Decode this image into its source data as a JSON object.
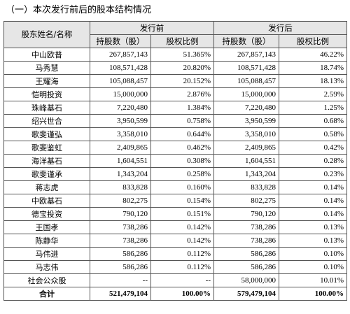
{
  "header": {
    "title": "（一）本次发行前后的股本结构情况"
  },
  "table": {
    "columns": {
      "name": "股东姓名/名称",
      "before": "发行前",
      "after": "发行后",
      "shares": "持股数（股）",
      "ratio": "股权比例"
    },
    "rows": [
      [
        "中山欧普",
        "267,857,143",
        "51.365%",
        "267,857,143",
        "46.22%"
      ],
      [
        "马秀慧",
        "108,571,428",
        "20.820%",
        "108,571,428",
        "18.74%"
      ],
      [
        "王耀海",
        "105,088,457",
        "20.152%",
        "105,088,457",
        "18.13%"
      ],
      [
        "恺明投资",
        "15,000,000",
        "2.876%",
        "15,000,000",
        "2.59%"
      ],
      [
        "珠峰基石",
        "7,220,480",
        "1.384%",
        "7,220,480",
        "1.25%"
      ],
      [
        "绍兴世合",
        "3,950,599",
        "0.758%",
        "3,950,599",
        "0.68%"
      ],
      [
        "歌斐谨弘",
        "3,358,010",
        "0.644%",
        "3,358,010",
        "0.58%"
      ],
      [
        "歌斐鉴虹",
        "2,409,865",
        "0.462%",
        "2,409,865",
        "0.42%"
      ],
      [
        "海洋基石",
        "1,604,551",
        "0.308%",
        "1,604,551",
        "0.28%"
      ],
      [
        "歌斐谨承",
        "1,343,204",
        "0.258%",
        "1,343,204",
        "0.23%"
      ],
      [
        "蒋志虎",
        "833,828",
        "0.160%",
        "833,828",
        "0.14%"
      ],
      [
        "中欧基石",
        "802,275",
        "0.154%",
        "802,275",
        "0.14%"
      ],
      [
        "德宝投资",
        "790,120",
        "0.151%",
        "790,120",
        "0.14%"
      ],
      [
        "王国孝",
        "738,286",
        "0.142%",
        "738,286",
        "0.13%"
      ],
      [
        "陈静华",
        "738,286",
        "0.142%",
        "738,286",
        "0.13%"
      ],
      [
        "马伟进",
        "586,286",
        "0.112%",
        "586,286",
        "0.10%"
      ],
      [
        "马志伟",
        "586,286",
        "0.112%",
        "586,286",
        "0.10%"
      ],
      [
        "社会公众股",
        "--",
        "--",
        "58,000,000",
        "10.01%"
      ],
      [
        "合计",
        "521,479,104",
        "100.00%",
        "579,479,104",
        "100.00%"
      ]
    ]
  }
}
